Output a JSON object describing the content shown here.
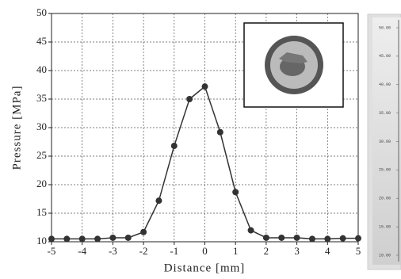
{
  "chart_data": {
    "type": "line",
    "x_label": "Distance [mm]",
    "y_label": "Pressure [MPa]",
    "x": [
      -5,
      -4.5,
      -4,
      -3.5,
      -3,
      -2.5,
      -2,
      -1.5,
      -1,
      -0.5,
      0,
      0.5,
      1,
      1.5,
      2,
      2.5,
      3,
      3.5,
      4,
      4.5,
      5
    ],
    "values": [
      10.5,
      10.5,
      10.5,
      10.5,
      10.7,
      10.7,
      11.7,
      17.2,
      26.8,
      35,
      37.2,
      29.2,
      18.7,
      12,
      10.7,
      10.7,
      10.7,
      10.5,
      10.5,
      10.6,
      10.6
    ],
    "color": "#333333",
    "xlim": [
      -5,
      5
    ],
    "xticks": [
      -5,
      -4,
      -3,
      -2,
      -1,
      0,
      1,
      2,
      3,
      4,
      5
    ],
    "ylim": [
      10,
      50
    ],
    "yticks": [
      10,
      15,
      20,
      25,
      30,
      35,
      40,
      45,
      50
    ],
    "grid": true,
    "colorbar_labels": [
      "50.00",
      "45.00",
      "40.00",
      "35.00",
      "30.00",
      "25.00",
      "20.00",
      "15.00",
      "10.00"
    ]
  }
}
